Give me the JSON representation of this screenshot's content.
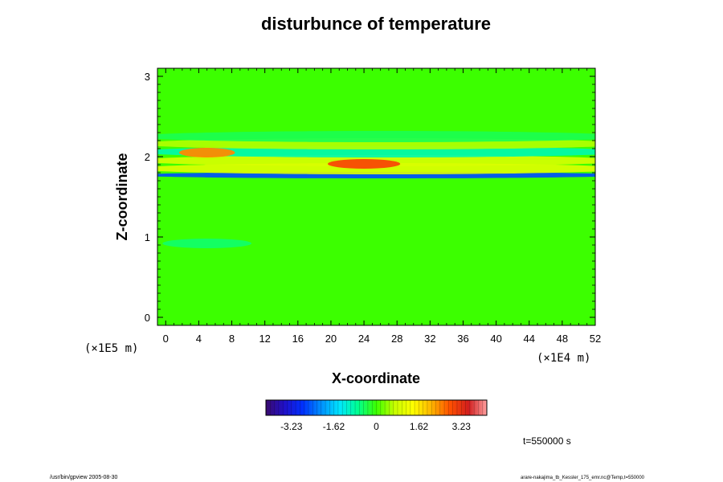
{
  "chart_data": {
    "type": "heatmap",
    "title": "disturbunce of temperature",
    "xlabel": "X-coordinate",
    "ylabel": "Z-coordinate",
    "x_unit": "(×1E4 m)",
    "y_unit": "(×1E5 m)",
    "xlim": [
      -1,
      52
    ],
    "ylim": [
      -0.1,
      3.1
    ],
    "x_ticks": [
      0,
      4,
      8,
      12,
      16,
      20,
      24,
      28,
      32,
      36,
      40,
      44,
      48,
      52
    ],
    "x_tick_labels": [
      "0",
      "4",
      "8",
      "12",
      "16",
      "20",
      "24",
      "28",
      "32",
      "36",
      "40",
      "44",
      "48",
      "52"
    ],
    "y_ticks": [
      0,
      1,
      2,
      3
    ],
    "y_tick_labels": [
      "0",
      "1",
      "2",
      "3"
    ],
    "colorbar": {
      "range": [
        -4.2,
        4.2
      ],
      "tick_values": [
        -3.23,
        -1.62,
        0,
        1.62,
        3.23
      ],
      "tick_labels": [
        "-3.23",
        "-1.62",
        "0",
        "1.62",
        "3.23"
      ],
      "colors": [
        "#3a0a6e",
        "#2010c8",
        "#0030ff",
        "#0090ff",
        "#00e6ff",
        "#00ff90",
        "#3cff00",
        "#c8ff00",
        "#ffff00",
        "#ffb400",
        "#ff5000",
        "#d21e1e",
        "#ffa0a0"
      ]
    },
    "background_value": 0,
    "features": [
      {
        "x": [
          0,
          52
        ],
        "z": 1.77,
        "value": -2.6
      },
      {
        "x": [
          0,
          52
        ],
        "z": 1.85,
        "value": 1.0
      },
      {
        "x": [
          0,
          52
        ],
        "z": 1.95,
        "value": 0.9
      },
      {
        "x": [
          0,
          52
        ],
        "z": 2.06,
        "value": -0.9
      },
      {
        "x": [
          0,
          52
        ],
        "z": 2.16,
        "value": 0.6
      },
      {
        "x": [
          0,
          52
        ],
        "z": 2.25,
        "value": -0.4
      },
      {
        "x": [
          2,
          8
        ],
        "z": 2.05,
        "value": 2.4
      },
      {
        "x": [
          20,
          28
        ],
        "z": 1.91,
        "value": 2.9
      },
      {
        "x": [
          0,
          10
        ],
        "z": 0.92,
        "value": -0.5
      }
    ]
  },
  "annotations": {
    "time": "t=550000 s",
    "footer_left": "/usr/bin/gpview 2005-08-30",
    "footer_right": "arare-nakajima_tb_Kessler_175_emr.nc@Temp,t=550000"
  }
}
